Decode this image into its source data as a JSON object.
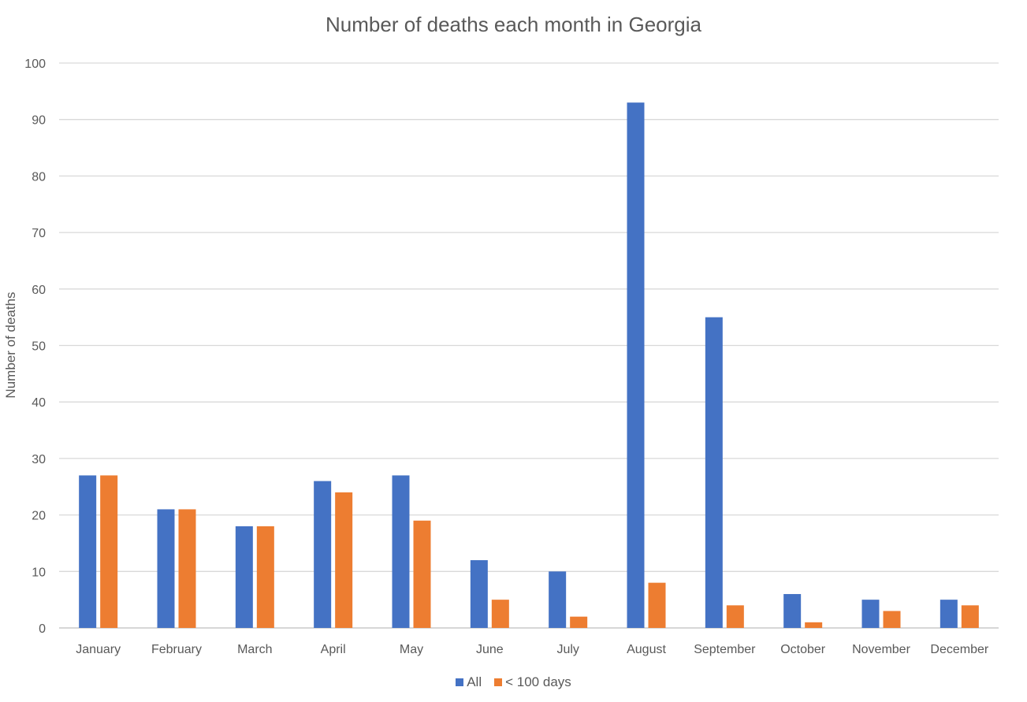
{
  "chart_data": {
    "type": "bar",
    "title": "Number of deaths each month in Georgia",
    "xlabel": "",
    "ylabel": "Number of deaths",
    "ylim": [
      0,
      100
    ],
    "yticks": [
      0,
      10,
      20,
      30,
      40,
      50,
      60,
      70,
      80,
      90,
      100
    ],
    "grid": true,
    "legend_position": "bottom",
    "categories": [
      "January",
      "February",
      "March",
      "April",
      "May",
      "June",
      "July",
      "August",
      "September",
      "October",
      "November",
      "December"
    ],
    "series": [
      {
        "name": "All",
        "color": "#4472C4",
        "values": [
          27,
          21,
          18,
          26,
          27,
          12,
          10,
          93,
          55,
          6,
          5,
          5
        ]
      },
      {
        "name": "< 100 days",
        "color": "#ED7D31",
        "values": [
          27,
          21,
          18,
          24,
          19,
          5,
          2,
          8,
          4,
          1,
          3,
          4
        ]
      }
    ]
  }
}
